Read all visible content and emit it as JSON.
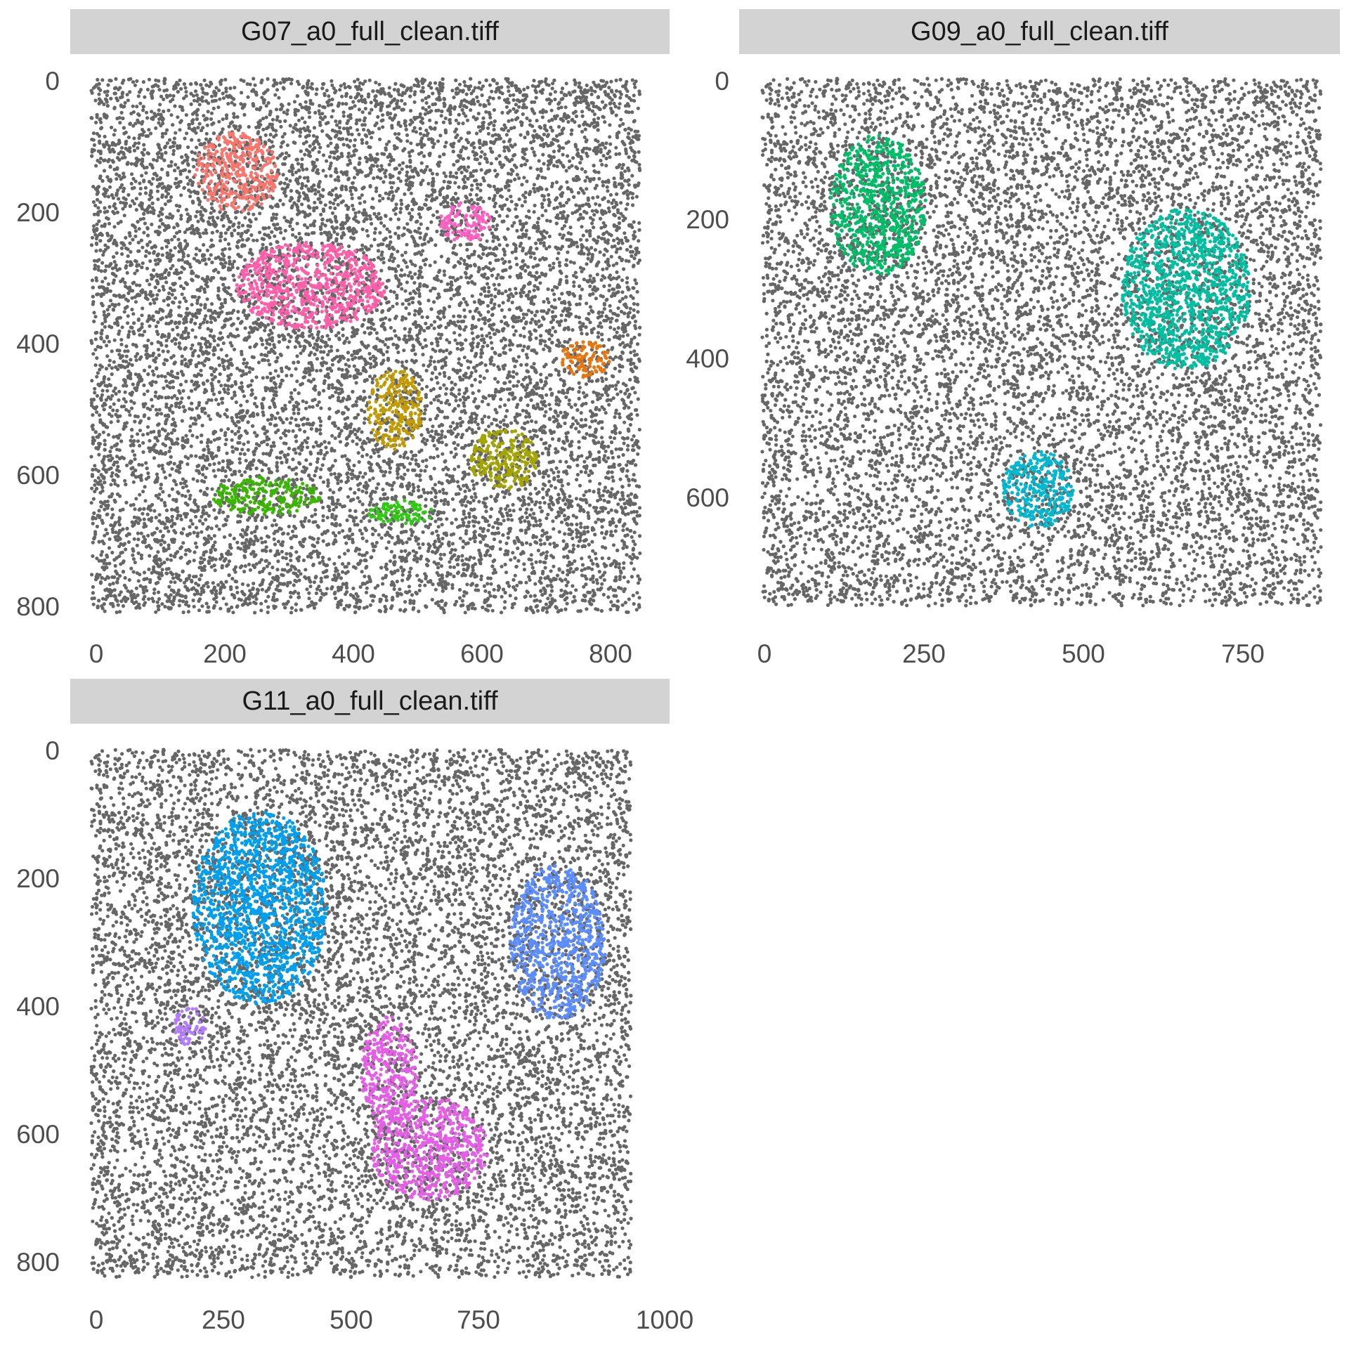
{
  "colors": {
    "background": "#d3d3d3",
    "strip": "#d3d3d3",
    "points": "#666666"
  },
  "chart_data": [
    {
      "type": "scatter",
      "title": "G07_a0_full_clean.tiff",
      "xlim": [
        0,
        860
      ],
      "ylim": [
        800,
        0
      ],
      "xticks": [
        "0",
        "200",
        "400",
        "600",
        "800"
      ],
      "yticks": [
        "0",
        "200",
        "400",
        "600",
        "800"
      ],
      "background_region": {
        "x": [
          0,
          850
        ],
        "y": [
          0,
          800
        ],
        "color": "#666666"
      },
      "clusters": [
        {
          "color": "#F8766D",
          "center": [
            225,
            140
          ],
          "radius": [
            65,
            60
          ]
        },
        {
          "color": "#FF61C3",
          "center": [
            580,
            215
          ],
          "radius": [
            40,
            30
          ]
        },
        {
          "color": "#FF5FA8",
          "center": [
            340,
            310
          ],
          "radius": [
            115,
            65
          ]
        },
        {
          "color": "#E8750D",
          "center": [
            765,
            420
          ],
          "radius": [
            38,
            28
          ]
        },
        {
          "color": "#C39A00",
          "center": [
            470,
            495
          ],
          "radius": [
            43,
            60
          ]
        },
        {
          "color": "#A3A500",
          "center": [
            640,
            570
          ],
          "radius": [
            55,
            45
          ]
        },
        {
          "color": "#39B600",
          "center": [
            270,
            625
          ],
          "radius": [
            85,
            28
          ]
        },
        {
          "color": "#2ECC10",
          "center": [
            480,
            650
          ],
          "radius": [
            50,
            18
          ]
        }
      ]
    },
    {
      "type": "scatter",
      "title": "G09_a0_full_clean.tiff",
      "xlim": [
        0,
        870
      ],
      "ylim": [
        760,
        0
      ],
      "xticks": [
        "0",
        "250",
        "500",
        "750"
      ],
      "yticks": [
        "0",
        "200",
        "400",
        "600"
      ],
      "background_region": {
        "x": [
          0,
          870
        ],
        "y": [
          0,
          750
        ],
        "color": "#666666"
      },
      "clusters": [
        {
          "color": "#00BE67",
          "center": [
            180,
            180
          ],
          "radius": [
            75,
            100
          ]
        },
        {
          "color": "#00BFA0",
          "center": [
            660,
            300
          ],
          "radius": [
            100,
            115
          ]
        },
        {
          "color": "#00B8D0",
          "center": [
            430,
            585
          ],
          "radius": [
            55,
            55
          ]
        }
      ]
    },
    {
      "type": "scatter",
      "title": "G11_a0_full_clean.tiff",
      "xlim": [
        0,
        1000
      ],
      "ylim": [
        830,
        0
      ],
      "xticks": [
        "0",
        "250",
        "500",
        "750",
        "1000"
      ],
      "yticks": [
        "0",
        "200",
        "400",
        "600",
        "800"
      ],
      "background_region": {
        "x": [
          0,
          960
        ],
        "y": [
          0,
          820
        ],
        "color": "#666666"
      },
      "clusters": [
        {
          "color": "#00A0F0",
          "center": [
            300,
            245
          ],
          "radius": [
            120,
            150
          ]
        },
        {
          "color": "#5C8DFF",
          "center": [
            830,
            300
          ],
          "radius": [
            85,
            120
          ]
        },
        {
          "color": "#B37DFF",
          "center": [
            175,
            430
          ],
          "radius": [
            28,
            30
          ]
        },
        {
          "color": "#E45EE6",
          "center": [
            600,
            620
          ],
          "radius": [
            105,
            80
          ]
        },
        {
          "color": "#E45EE6",
          "center": [
            530,
            500
          ],
          "radius": [
            50,
            85
          ]
        }
      ]
    }
  ]
}
